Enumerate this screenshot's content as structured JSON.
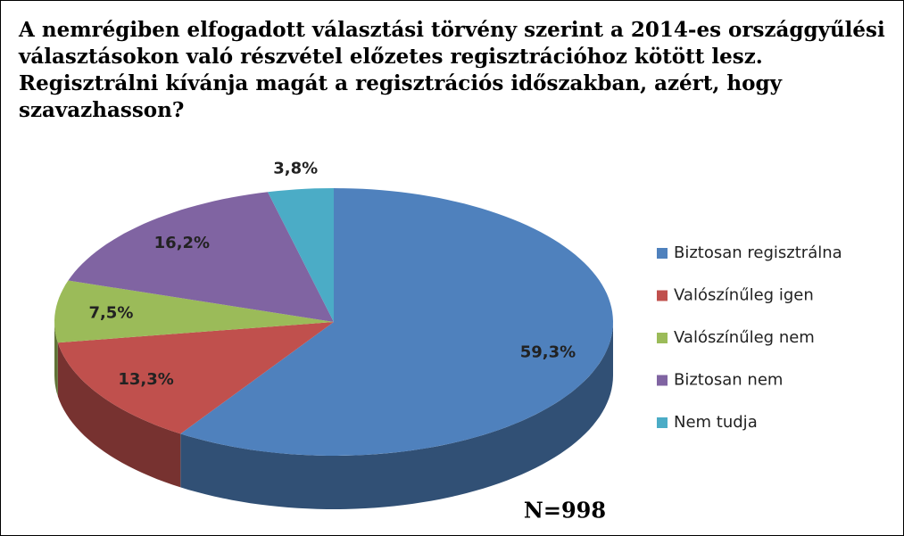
{
  "chart_data": {
    "type": "pie",
    "title": "A nemrégiben elfogadott választási törvény szerint a 2014-es országgyűlési választásokon való részvétel előzetes regisztrációhoz kötött lesz. Regisztrálni kívánja magát a regisztrációs időszakban, azért, hogy szavazhasson?",
    "categories": [
      "Biztosan regisztrálna",
      "Valószínűleg igen",
      "Valószínűleg nem",
      "Biztosan nem",
      "Nem tudja"
    ],
    "values": [
      59.3,
      13.3,
      7.5,
      16.2,
      3.8
    ],
    "value_labels": [
      "59,3%",
      "13,3%",
      "7,5%",
      "16,2%",
      "3,8%"
    ],
    "colors": [
      "#4f81bd",
      "#c0504d",
      "#9bbb59",
      "#8064a2",
      "#4bacc6"
    ],
    "legend": "right",
    "annotation": "N=998"
  }
}
